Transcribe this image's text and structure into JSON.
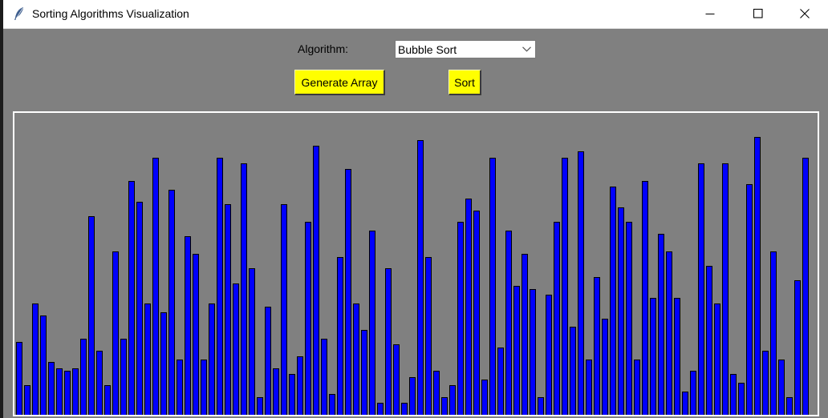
{
  "window": {
    "title": "Sorting Algorithms Visualization",
    "icons": {
      "app": "feather-icon",
      "minimize": "minimize-icon",
      "maximize": "maximize-icon",
      "close": "close-icon"
    }
  },
  "controls": {
    "algorithm_label": "Algorithm:",
    "algorithm_value": "Bubble Sort",
    "generate_label": "Generate Array",
    "sort_label": "Sort"
  },
  "colors": {
    "background": "#808080",
    "button": "#ffff00",
    "bar_fill": "#0000ff",
    "bar_outline": "#000000",
    "canvas_border": "#ffffff"
  },
  "array": {
    "max": 100,
    "values": [
      25,
      10,
      38,
      34,
      18,
      16,
      15,
      16,
      26,
      68,
      22,
      10,
      56,
      26,
      80,
      73,
      38,
      88,
      35,
      77,
      19,
      61,
      55,
      19,
      38,
      88,
      72,
      45,
      86,
      50,
      6,
      37,
      16,
      72,
      14,
      20,
      66,
      92,
      26,
      7,
      54,
      84,
      38,
      29,
      63,
      4,
      50,
      24,
      4,
      13,
      94,
      54,
      15,
      6,
      10,
      66,
      74,
      70,
      12,
      88,
      23,
      63,
      44,
      55,
      43,
      6,
      41,
      66,
      88,
      30,
      90,
      19,
      47,
      33,
      78,
      71,
      66,
      19,
      80,
      40,
      62,
      56,
      40,
      8,
      15,
      86,
      51,
      38,
      86,
      14,
      11,
      79,
      95,
      22,
      56,
      19,
      6,
      46,
      88
    ]
  }
}
